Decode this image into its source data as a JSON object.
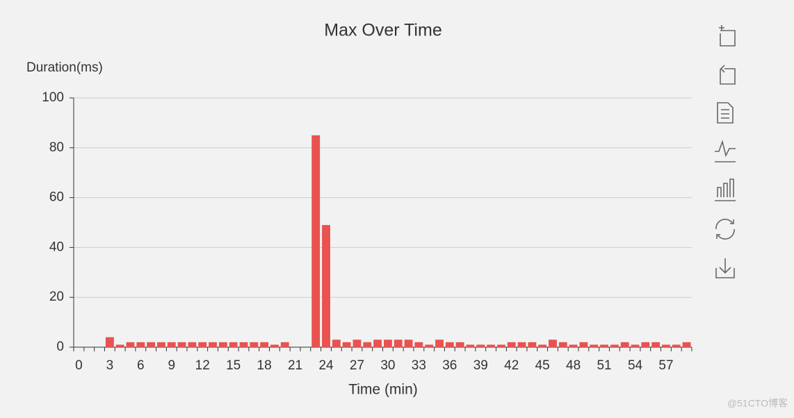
{
  "chart_data": {
    "type": "bar",
    "title": "Max Over Time",
    "y_label": "Duration(ms)",
    "x_label": "Time (min)",
    "categories": [
      "0",
      null,
      null,
      "3",
      null,
      null,
      "6",
      null,
      null,
      "9",
      null,
      null,
      "12",
      null,
      null,
      "15",
      null,
      null,
      "18",
      null,
      null,
      "21",
      null,
      null,
      "24",
      null,
      null,
      "27",
      null,
      null,
      "30",
      null,
      null,
      "33",
      null,
      null,
      "36",
      null,
      null,
      "39",
      null,
      null,
      "42",
      null,
      null,
      "45",
      null,
      null,
      "48",
      null,
      null,
      "51",
      null,
      null,
      "54",
      null,
      null,
      "57",
      null,
      null
    ],
    "values": [
      0,
      0,
      0,
      4,
      1,
      2,
      2,
      2,
      2,
      2,
      2,
      2,
      2,
      2,
      2,
      2,
      2,
      2,
      2,
      1,
      2,
      0,
      0,
      85,
      49,
      3,
      2,
      3,
      2,
      3,
      3,
      3,
      3,
      2,
      1,
      3,
      2,
      2,
      1,
      1,
      1,
      1,
      2,
      2,
      2,
      1,
      3,
      2,
      1,
      2,
      1,
      1,
      1,
      2,
      1,
      2,
      2,
      1,
      1,
      2
    ],
    "color": "#e8524f",
    "ylim": [
      0,
      100
    ],
    "yticks": [
      0,
      20,
      40,
      60,
      80,
      100
    ],
    "grid": true
  },
  "watermark": "@51CTO博客"
}
